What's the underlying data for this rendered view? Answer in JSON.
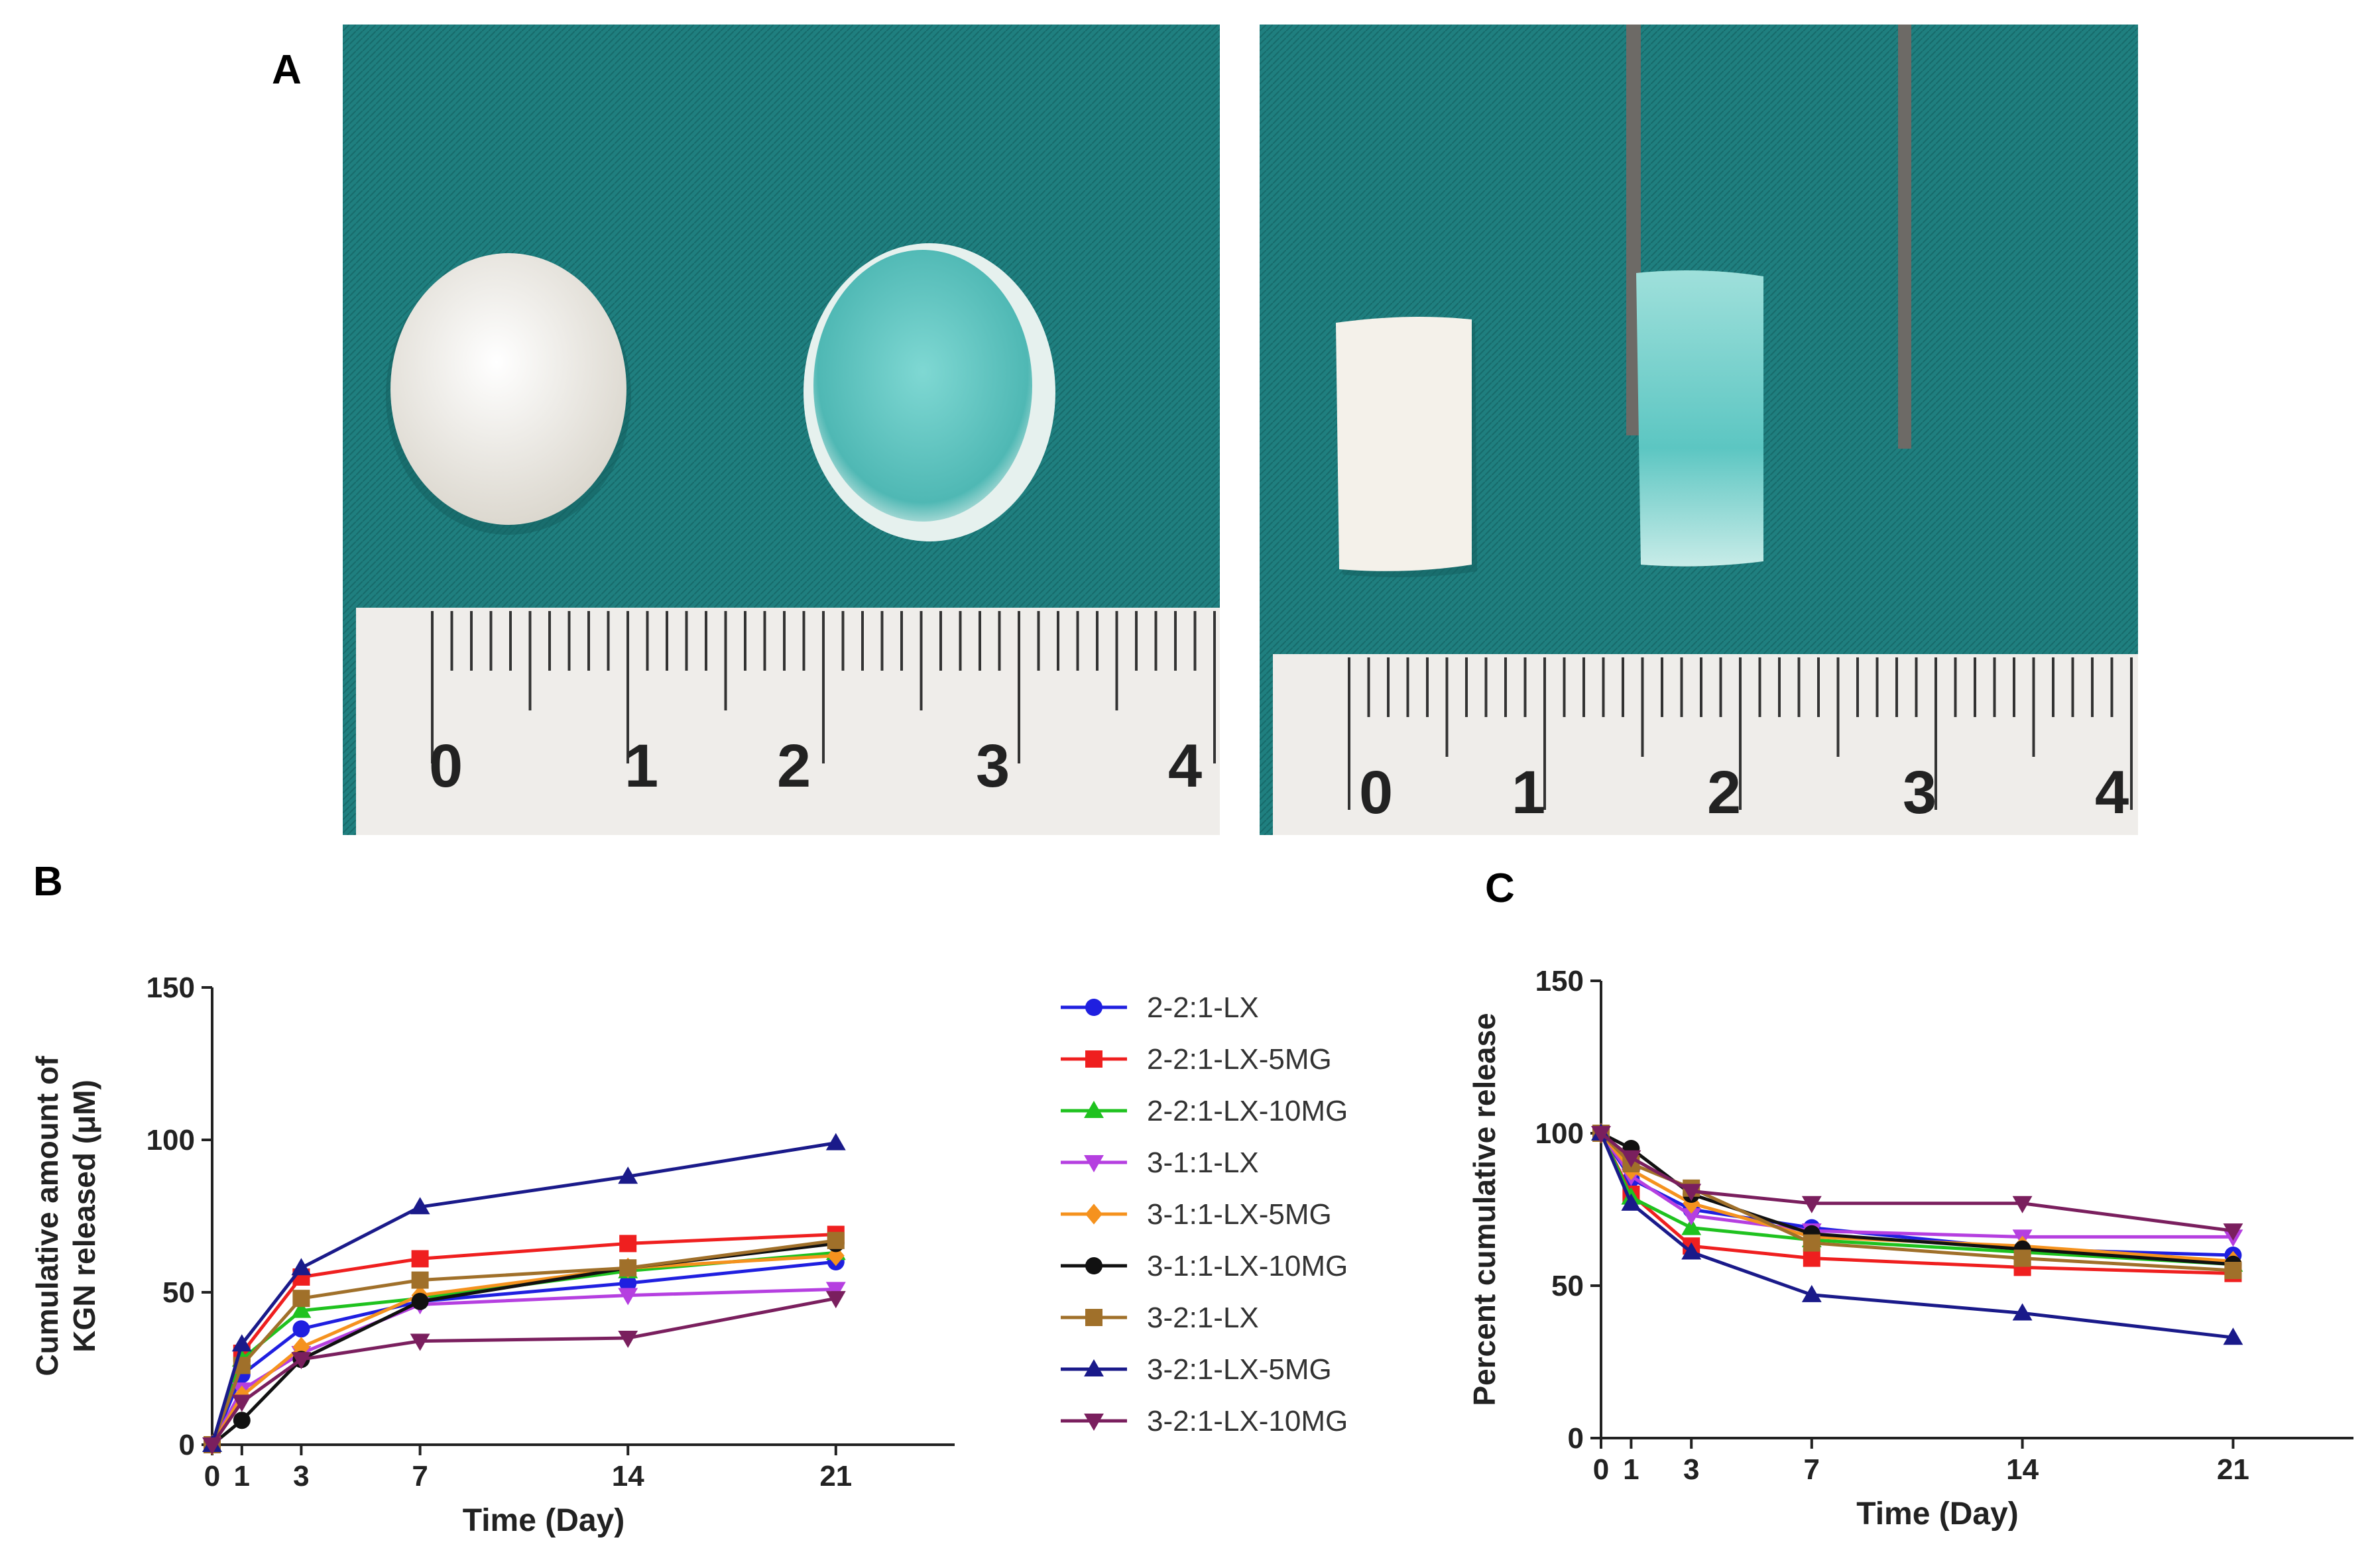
{
  "panels": {
    "a": "A",
    "b": "B",
    "c": "C"
  },
  "photos": {
    "top_view": {
      "ruler_numbers": [
        "0",
        "1",
        "2",
        "3",
        "4"
      ]
    },
    "side_view": {
      "ruler_numbers": [
        "0",
        "1",
        "2",
        "3",
        "4"
      ]
    },
    "colors": {
      "cloth": "#1f7f7f",
      "scaffold": "#f4f1ea",
      "hydrogel": "#5cc6c2",
      "ruler": "#efedea",
      "tweezer": "#6d6a66"
    }
  },
  "legend": {
    "entries": [
      {
        "label": "2-2:1-LX",
        "color": "#1f1fe0",
        "marker": "circle"
      },
      {
        "label": "2-2:1-LX-5MG",
        "color": "#ef1f1f",
        "marker": "square"
      },
      {
        "label": "2-2:1-LX-10MG",
        "color": "#1fc21f",
        "marker": "triangle-up"
      },
      {
        "label": "3-1:1-LX",
        "color": "#b53fe0",
        "marker": "triangle-down"
      },
      {
        "label": "3-1:1-LX-5MG",
        "color": "#f5921e",
        "marker": "diamond"
      },
      {
        "label": "3-1:1-LX-10MG",
        "color": "#111111",
        "marker": "circle"
      },
      {
        "label": "3-2:1-LX",
        "color": "#a0702a",
        "marker": "square"
      },
      {
        "label": "3-2:1-LX-5MG",
        "color": "#1a1a8a",
        "marker": "triangle-up"
      },
      {
        "label": "3-2:1-LX-10MG",
        "color": "#7a1f5e",
        "marker": "triangle-down"
      }
    ]
  },
  "chart_data": [
    {
      "type": "line",
      "panel": "B",
      "xlabel": "Time (Day)",
      "ylabel_lines": [
        "Cumulative amount of",
        "KGN released (μM)"
      ],
      "x": [
        0,
        1,
        3,
        7,
        14,
        21
      ],
      "xticks": [
        "0",
        "1",
        "3",
        "7",
        "14",
        "21"
      ],
      "xlim": [
        0,
        25
      ],
      "yticks": [
        "0",
        "50",
        "100",
        "150"
      ],
      "ylim": [
        0,
        150
      ],
      "series": [
        {
          "name": "2-2:1-LX",
          "values": [
            0,
            23,
            38,
            47,
            53,
            60
          ]
        },
        {
          "name": "2-2:1-LX-5MG",
          "values": [
            0,
            30,
            55,
            61,
            66,
            69
          ]
        },
        {
          "name": "2-2:1-LX-10MG",
          "values": [
            0,
            28,
            44,
            48,
            57,
            63
          ]
        },
        {
          "name": "3-1:1-LX",
          "values": [
            0,
            18,
            30,
            46,
            49,
            51
          ]
        },
        {
          "name": "3-1:1-LX-5MG",
          "values": [
            0,
            16,
            32,
            49,
            58,
            62
          ]
        },
        {
          "name": "3-1:1-LX-10MG",
          "values": [
            0,
            8,
            28,
            47,
            58,
            66
          ]
        },
        {
          "name": "3-2:1-LX",
          "values": [
            0,
            26,
            48,
            54,
            58,
            67
          ]
        },
        {
          "name": "3-2:1-LX-5MG",
          "values": [
            0,
            33,
            58,
            78,
            88,
            99
          ]
        },
        {
          "name": "3-2:1-LX-10MG",
          "values": [
            0,
            14,
            28,
            34,
            35,
            48
          ]
        }
      ]
    },
    {
      "type": "line",
      "panel": "C",
      "xlabel": "Time (Day)",
      "ylabel_lines": [
        "Percent cumulative release"
      ],
      "x": [
        0,
        1,
        3,
        7,
        14,
        21
      ],
      "xticks": [
        "0",
        "1",
        "3",
        "7",
        "14",
        "21"
      ],
      "xlim": [
        0,
        25
      ],
      "yticks": [
        "0",
        "50",
        "100",
        "150"
      ],
      "ylim": [
        0,
        150
      ],
      "series": [
        {
          "name": "2-2:1-LX",
          "values": [
            100,
            85,
            75,
            69,
            62,
            60
          ]
        },
        {
          "name": "2-2:1-LX-5MG",
          "values": [
            100,
            80,
            63,
            59,
            56,
            54
          ]
        },
        {
          "name": "2-2:1-LX-10MG",
          "values": [
            100,
            79,
            69,
            65,
            61,
            57
          ]
        },
        {
          "name": "3-1:1-LX",
          "values": [
            100,
            86,
            73,
            68,
            66,
            66
          ]
        },
        {
          "name": "3-1:1-LX-5MG",
          "values": [
            100,
            88,
            77,
            66,
            63,
            58
          ]
        },
        {
          "name": "3-1:1-LX-10MG",
          "values": [
            100,
            95,
            80,
            67,
            62,
            57
          ]
        },
        {
          "name": "3-2:1-LX",
          "values": [
            100,
            90,
            82,
            64,
            59,
            55
          ]
        },
        {
          "name": "3-2:1-LX-5MG",
          "values": [
            100,
            77,
            61,
            47,
            41,
            33
          ]
        },
        {
          "name": "3-2:1-LX-10MG",
          "values": [
            100,
            92,
            81,
            77,
            77,
            68
          ]
        }
      ]
    }
  ]
}
